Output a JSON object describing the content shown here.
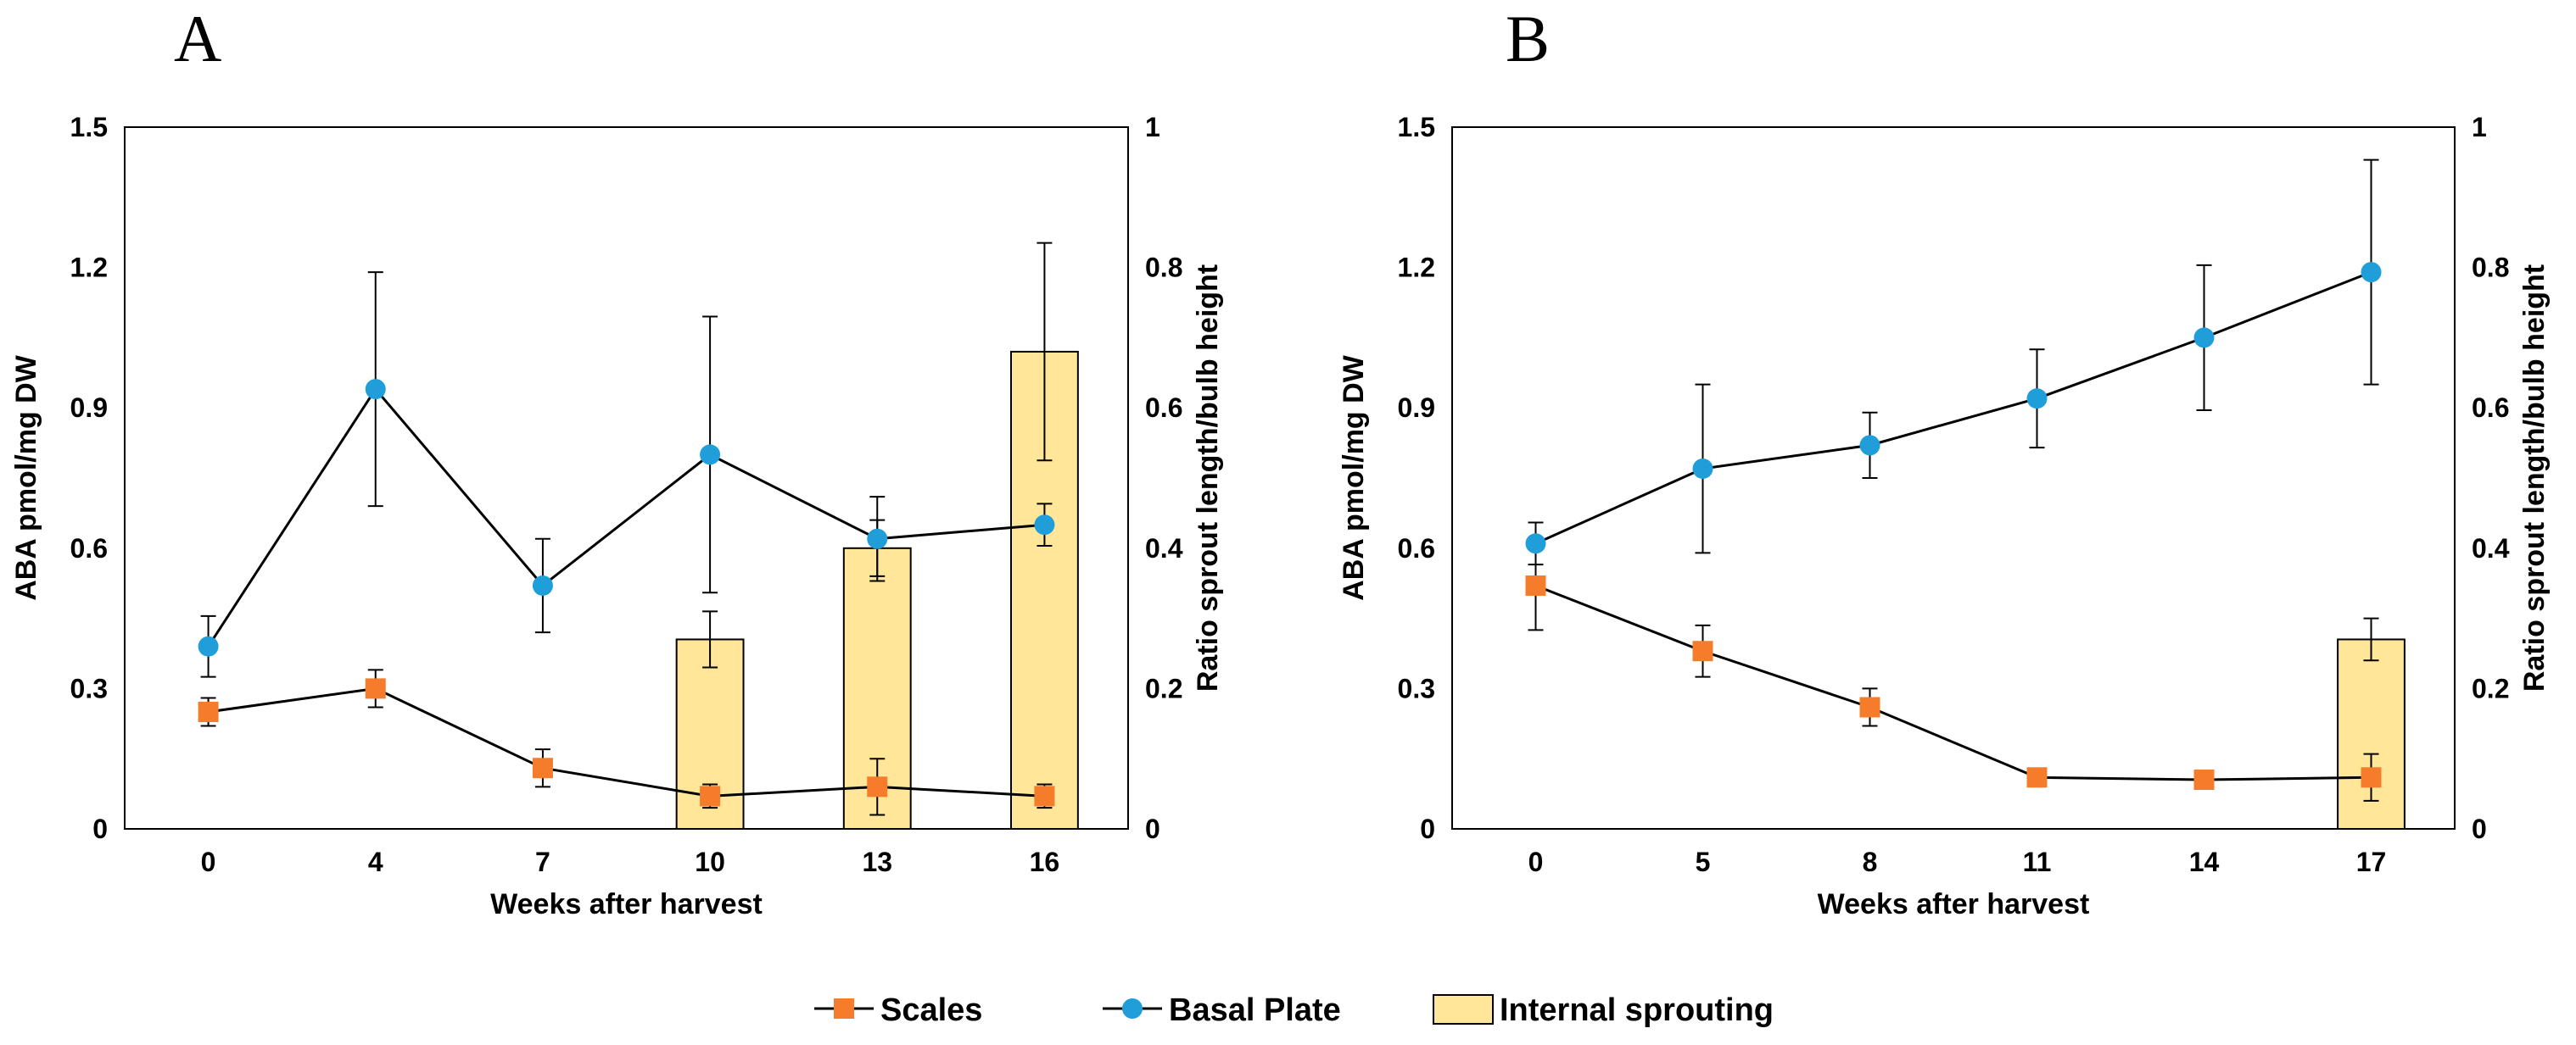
{
  "colors": {
    "scales": "#F47C2B",
    "basal_plate": "#1F9ED9",
    "bar_fill": "#FFE699",
    "bar_stroke": "#000000",
    "line": "#000000"
  },
  "legend": {
    "items": [
      {
        "label": "Scales",
        "marker": "square",
        "color": "#F47C2B"
      },
      {
        "label": "Basal Plate",
        "marker": "circle",
        "color": "#1F9ED9"
      },
      {
        "label": "Internal sprouting",
        "marker": "bar",
        "color": "#FFE699"
      }
    ]
  },
  "chart_data": [
    {
      "panel_label": "A",
      "type": "line+bar",
      "xlabel": "Weeks after harvest",
      "ylabel_left": "ABA pmol/mg DW",
      "ylabel_right": "Ratio sprout length/bulb height",
      "ylim_left": [
        0,
        1.5
      ],
      "yticks_left": [
        "0",
        "0.3",
        "0.6",
        "0.9",
        "1.2",
        "1.5"
      ],
      "ylim_right": [
        0,
        1
      ],
      "yticks_right": [
        "0",
        "0.2",
        "0.4",
        "0.6",
        "0.8",
        "1"
      ],
      "categories": [
        "0",
        "4",
        "7",
        "10",
        "13",
        "16"
      ],
      "series": [
        {
          "name": "Scales",
          "type": "line",
          "axis": "left",
          "values": [
            0.25,
            0.3,
            0.13,
            0.07,
            0.09,
            0.07
          ],
          "errors": [
            0.03,
            0.04,
            0.04,
            0.025,
            0.06,
            0.025
          ]
        },
        {
          "name": "Basal Plate",
          "type": "line",
          "axis": "left",
          "values": [
            0.39,
            0.94,
            0.52,
            0.8,
            0.62,
            0.65
          ],
          "errors": [
            0.065,
            0.25,
            0.1,
            0.295,
            0.09,
            0.045
          ]
        },
        {
          "name": "Internal sprouting",
          "type": "bar",
          "axis": "right",
          "values": [
            null,
            null,
            null,
            0.27,
            0.4,
            0.68
          ],
          "errors": [
            null,
            null,
            null,
            0.04,
            0.04,
            0.155
          ]
        }
      ],
      "grid": false
    },
    {
      "panel_label": "B",
      "type": "line+bar",
      "xlabel": "Weeks after harvest",
      "ylabel_left": "ABA pmol/mg DW",
      "ylabel_right": "Ratio sprout length/bulb height",
      "ylim_left": [
        0,
        1.5
      ],
      "yticks_left": [
        "0",
        "0.3",
        "0.6",
        "0.9",
        "1.2",
        "1.5"
      ],
      "ylim_right": [
        0,
        1
      ],
      "yticks_right": [
        "0",
        "0.2",
        "0.4",
        "0.6",
        "0.8",
        "1"
      ],
      "categories": [
        "0",
        "5",
        "8",
        "11",
        "14",
        "17"
      ],
      "series": [
        {
          "name": "Scales",
          "type": "line",
          "axis": "left",
          "values": [
            0.52,
            0.38,
            0.26,
            0.11,
            0.105,
            0.11
          ],
          "errors": [
            0.095,
            0.055,
            0.04,
            0.01,
            0.015,
            0.05
          ]
        },
        {
          "name": "Basal Plate",
          "type": "line",
          "axis": "left",
          "values": [
            0.61,
            0.77,
            0.82,
            0.92,
            1.05,
            1.19
          ],
          "errors": [
            0.045,
            0.18,
            0.07,
            0.105,
            0.155,
            0.24
          ]
        },
        {
          "name": "Internal sprouting",
          "type": "bar",
          "axis": "right",
          "values": [
            null,
            null,
            null,
            null,
            null,
            0.27
          ],
          "errors": [
            null,
            null,
            null,
            null,
            null,
            0.03
          ]
        }
      ],
      "grid": false
    }
  ]
}
